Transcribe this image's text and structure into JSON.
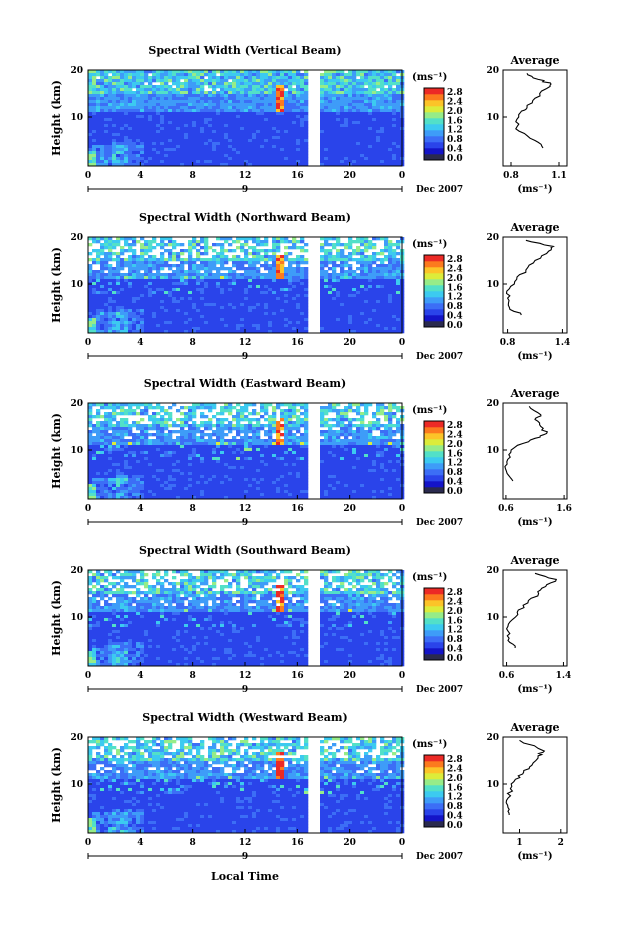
{
  "colors": [
    "#2a2a4e",
    "#1414c8",
    "#2a44ea",
    "#3c6ef6",
    "#3e9cf8",
    "#3ccaf0",
    "#52e0c8",
    "#96ec88",
    "#dcec3a",
    "#fcc428",
    "#fc7a1e",
    "#ec2a26"
  ],
  "chart_data": {
    "type": "heatmap",
    "xlabel": "Local Time",
    "ylabel": "Height (km)",
    "date_label": "Dec 2007",
    "day_label": "9",
    "x_ticks": [
      "0",
      "4",
      "8",
      "12",
      "16",
      "20",
      "0"
    ],
    "y_ticks": [
      "20",
      "10"
    ],
    "colorbar_unit": "(ms⁻¹)",
    "colorbar_ticks": [
      "2.8",
      "2.4",
      "2.0",
      "1.6",
      "1.2",
      "0.8",
      "0.4",
      "0.0"
    ],
    "profile_title": "Average",
    "profile_unit": "(ms⁻¹)",
    "panels": [
      {
        "title": "Spectral Width (Vertical Beam)",
        "profile_xticks": [
          "0.8",
          "1.1"
        ],
        "profile_xlim": [
          0.75,
          1.15
        ],
        "profile": [
          [
            1.0,
            3.4
          ],
          [
            0.95,
            5
          ],
          [
            0.85,
            7
          ],
          [
            0.83,
            9
          ],
          [
            0.86,
            11
          ],
          [
            0.9,
            12
          ],
          [
            0.95,
            14
          ],
          [
            1.02,
            16
          ],
          [
            1.05,
            17
          ],
          [
            0.97,
            18
          ],
          [
            0.9,
            19.3
          ]
        ]
      },
      {
        "title": "Spectral Width (Northward Beam)",
        "profile_xticks": [
          "0.8",
          "1.4"
        ],
        "profile_xlim": [
          0.75,
          1.45
        ],
        "profile": [
          [
            0.95,
            3.4
          ],
          [
            0.82,
            5
          ],
          [
            0.8,
            7
          ],
          [
            0.82,
            9
          ],
          [
            0.9,
            11
          ],
          [
            1.0,
            13
          ],
          [
            1.1,
            15
          ],
          [
            1.25,
            17
          ],
          [
            1.3,
            18
          ],
          [
            1.0,
            19.3
          ]
        ]
      },
      {
        "title": "Spectral Width (Eastward Beam)",
        "profile_xticks": [
          "0.6",
          "1.6"
        ],
        "profile_xlim": [
          0.55,
          1.65
        ],
        "profile": [
          [
            0.72,
            3.4
          ],
          [
            0.62,
            5
          ],
          [
            0.62,
            7
          ],
          [
            0.65,
            9
          ],
          [
            0.8,
            11
          ],
          [
            1.1,
            12.5
          ],
          [
            1.3,
            13.5
          ],
          [
            1.2,
            15
          ],
          [
            1.1,
            16.5
          ],
          [
            1.2,
            17.5
          ],
          [
            1.0,
            19.3
          ]
        ]
      },
      {
        "title": "Spectral Width (Southward Beam)",
        "profile_xticks": [
          "0.6",
          "1.4"
        ],
        "profile_xlim": [
          0.55,
          1.45
        ],
        "profile": [
          [
            0.72,
            3.4
          ],
          [
            0.62,
            5
          ],
          [
            0.62,
            7
          ],
          [
            0.65,
            9
          ],
          [
            0.75,
            11
          ],
          [
            0.9,
            13
          ],
          [
            1.05,
            15
          ],
          [
            1.15,
            16.5
          ],
          [
            1.3,
            18
          ],
          [
            1.0,
            19.3
          ]
        ]
      },
      {
        "title": "Spectral Width (Westward Beam)",
        "profile_xticks": [
          "1",
          "2"
        ],
        "profile_xlim": [
          0.6,
          2.15
        ],
        "profile": [
          [
            0.75,
            3.4
          ],
          [
            0.72,
            5
          ],
          [
            0.72,
            7
          ],
          [
            0.78,
            9
          ],
          [
            0.9,
            11
          ],
          [
            1.1,
            12.5
          ],
          [
            1.3,
            14
          ],
          [
            1.45,
            16
          ],
          [
            1.6,
            17
          ],
          [
            1.0,
            19.3
          ]
        ]
      }
    ]
  }
}
